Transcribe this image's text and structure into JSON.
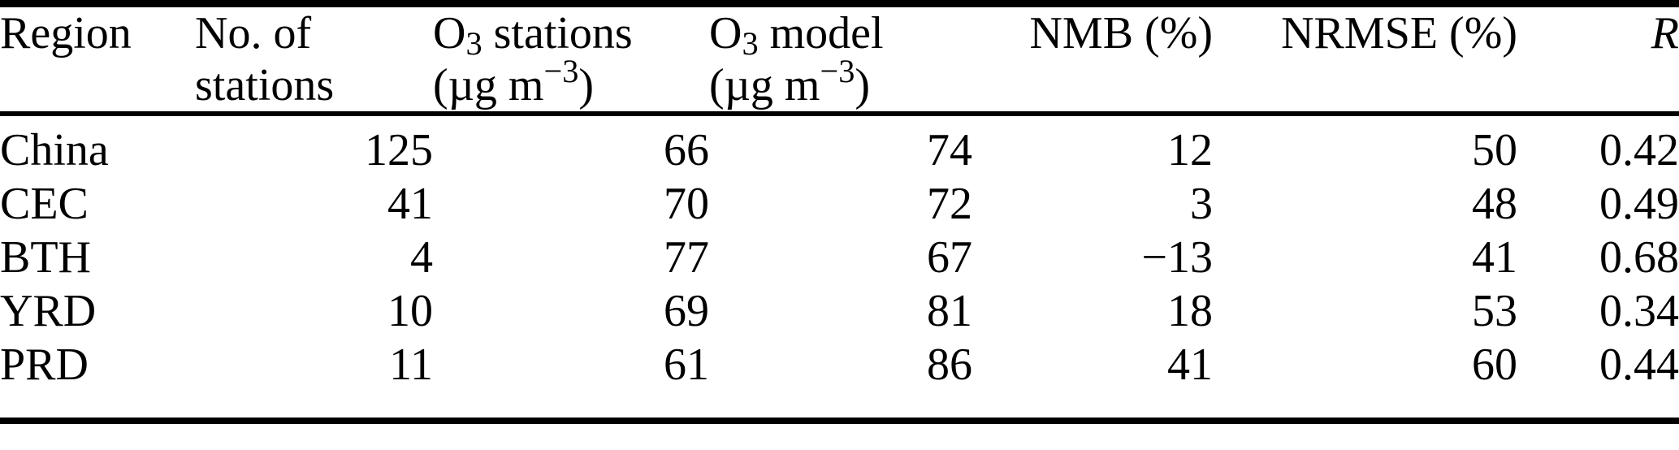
{
  "table": {
    "description": "Model evaluation statistics for surface ozone by region",
    "text_color": "#000000",
    "rule_color": "#000000",
    "columns": [
      {
        "id": "region",
        "label": "Region",
        "label2": "",
        "italic": false
      },
      {
        "id": "no-of-stations",
        "label": "No. of",
        "label2": "stations",
        "italic": false
      },
      {
        "id": "o3-stations",
        "label": "O_{3} stations",
        "label2": "(µg m^{−3})",
        "italic": false
      },
      {
        "id": "o3-model",
        "label": "O_{3} model",
        "label2": "(µg m^{−3})",
        "italic": false
      },
      {
        "id": "nmb",
        "label": "NMB (%)",
        "label2": "",
        "italic": false
      },
      {
        "id": "nrmse",
        "label": "NRMSE (%)",
        "label2": "",
        "italic": false
      },
      {
        "id": "r",
        "label": "R",
        "label2": "",
        "italic": true
      }
    ],
    "rows": [
      [
        "China",
        "125",
        "66",
        "74",
        "12",
        "50",
        "0.42"
      ],
      [
        "CEC",
        "41",
        "70",
        "72",
        "3",
        "48",
        "0.49"
      ],
      [
        "BTH",
        "4",
        "77",
        "67",
        "−13",
        "41",
        "0.68"
      ],
      [
        "YRD",
        "10",
        "69",
        "81",
        "18",
        "53",
        "0.34"
      ],
      [
        "PRD",
        "11",
        "61",
        "86",
        "41",
        "60",
        "0.44"
      ]
    ]
  }
}
